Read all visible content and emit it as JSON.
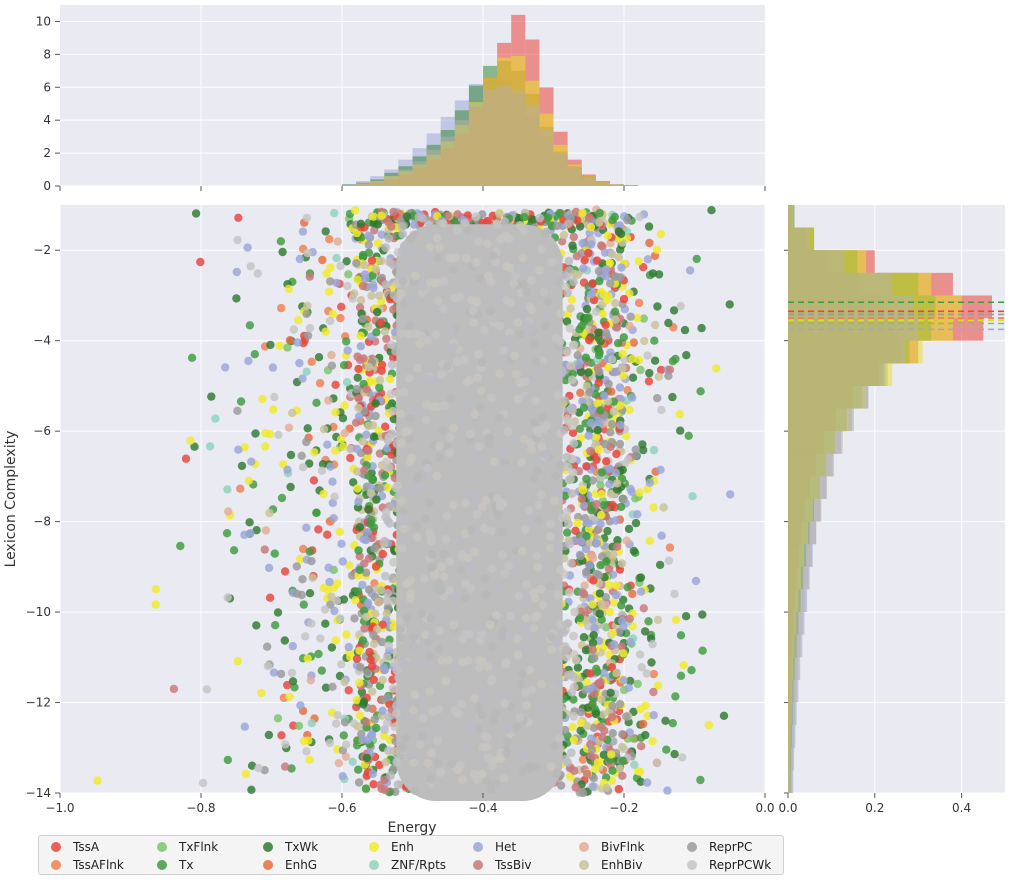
{
  "chart_data": [
    {
      "id": "top_histogram",
      "type": "histogram",
      "title": "",
      "xlabel": "",
      "ylabel": "",
      "xlim": [
        -1.0,
        0.0
      ],
      "ylim": [
        0,
        11
      ],
      "yticks": [
        0,
        2,
        4,
        6,
        8,
        10
      ],
      "ytick_labels": [
        "0",
        "2",
        "4",
        "6",
        "8",
        "10"
      ],
      "grid": true,
      "bin_edges": [
        -0.6,
        -0.58,
        -0.56,
        -0.54,
        -0.52,
        -0.5,
        -0.48,
        -0.46,
        -0.44,
        -0.42,
        -0.4,
        -0.38,
        -0.36,
        -0.34,
        -0.32,
        -0.3,
        -0.28,
        -0.26,
        -0.24,
        -0.22,
        -0.2,
        -0.18
      ],
      "series": [
        {
          "name": "Het",
          "color": "#9fa8da",
          "values": [
            0.1,
            0.3,
            0.6,
            1.0,
            1.6,
            2.3,
            3.2,
            4.2,
            5.2,
            6.2,
            6.6,
            6.4,
            5.6,
            4.3,
            3.0,
            1.9,
            1.1,
            0.6,
            0.3,
            0.1,
            0.05
          ]
        },
        {
          "name": "TxWk",
          "color": "#3a8a3a",
          "values": [
            0.1,
            0.2,
            0.4,
            0.8,
            1.2,
            1.8,
            2.5,
            3.4,
            4.6,
            6.1,
            7.3,
            7.6,
            7.0,
            5.6,
            3.6,
            2.1,
            1.2,
            0.6,
            0.3,
            0.1,
            0.05
          ]
        },
        {
          "name": "TssA",
          "color": "#e8453c",
          "values": [
            0.05,
            0.1,
            0.2,
            0.4,
            0.7,
            1.1,
            1.6,
            2.3,
            3.2,
            4.8,
            6.6,
            8.7,
            10.4,
            8.9,
            6.0,
            3.3,
            1.6,
            0.7,
            0.3,
            0.1,
            0.05
          ]
        },
        {
          "name": "Enh",
          "color": "#e8e02a",
          "values": [
            0.05,
            0.15,
            0.3,
            0.6,
            0.9,
            1.3,
            1.9,
            2.7,
            3.7,
            5.1,
            6.6,
            7.8,
            7.9,
            6.4,
            4.4,
            2.5,
            1.3,
            0.6,
            0.3,
            0.1,
            0.05
          ]
        },
        {
          "name": "ReprPCWk",
          "color": "#b8b0a0",
          "values": [
            0.05,
            0.15,
            0.3,
            0.6,
            1.0,
            1.5,
            2.2,
            3.0,
            4.0,
            5.0,
            5.9,
            6.1,
            5.8,
            4.9,
            3.4,
            2.0,
            1.1,
            0.5,
            0.2,
            0.1,
            0.05
          ]
        }
      ]
    },
    {
      "id": "main_scatter",
      "type": "scatter",
      "title": "",
      "xlabel": "Energy",
      "ylabel": "Lexicon Complexity",
      "xlim": [
        -1.0,
        0.0
      ],
      "ylim": [
        -14,
        -1.0
      ],
      "xticks": [
        -1.0,
        -0.8,
        -0.6,
        -0.4,
        -0.2,
        0.0
      ],
      "xtick_labels": [
        "−1.0",
        "−0.8",
        "−0.6",
        "−0.4",
        "−0.2",
        "0.0"
      ],
      "yticks": [
        -14,
        -12,
        -10,
        -8,
        -6,
        -4,
        -2
      ],
      "ytick_labels": [
        "−14",
        "−12",
        "−10",
        "−8",
        "−6",
        "−4",
        "−2"
      ],
      "grid": true,
      "core_region": {
        "x": [
          -0.54,
          -0.27
        ],
        "y": [
          -14,
          -1.25
        ],
        "note": "dense overlapping points, predominantly grey (ReprPCWk)"
      },
      "series": [
        {
          "name": "TssA",
          "color": "#e8453c",
          "x_center": -0.36,
          "x_spread": 0.12,
          "y_range": [
            -14,
            -1.1
          ]
        },
        {
          "name": "TssAFlnk",
          "color": "#f07f4f",
          "x_center": -0.37,
          "x_spread": 0.12,
          "y_range": [
            -14,
            -1.1
          ]
        },
        {
          "name": "TxFlnk",
          "color": "#7cc46a",
          "x_center": -0.38,
          "x_spread": 0.13,
          "y_range": [
            -14,
            -1.1
          ]
        },
        {
          "name": "Tx",
          "color": "#3f9b3f",
          "x_center": -0.39,
          "x_spread": 0.15,
          "y_range": [
            -14,
            -1.1
          ]
        },
        {
          "name": "TxWk",
          "color": "#2f7a2f",
          "x_center": -0.4,
          "x_spread": 0.17,
          "y_range": [
            -14,
            -1.1
          ]
        },
        {
          "name": "EnhG",
          "color": "#e66d3a",
          "x_center": -0.37,
          "x_spread": 0.12,
          "y_range": [
            -14,
            -1.1
          ]
        },
        {
          "name": "Enh",
          "color": "#f0ea2a",
          "x_center": -0.38,
          "x_spread": 0.14,
          "y_range": [
            -14,
            -1.1
          ]
        },
        {
          "name": "ZNF/Rpts",
          "color": "#8fd3bd",
          "x_center": -0.4,
          "x_spread": 0.14,
          "y_range": [
            -14,
            -1.1
          ]
        },
        {
          "name": "Het",
          "color": "#9aa6d8",
          "x_center": -0.42,
          "x_spread": 0.15,
          "y_range": [
            -14,
            -1.1
          ]
        },
        {
          "name": "TssBiv",
          "color": "#c9787a",
          "x_center": -0.39,
          "x_spread": 0.12,
          "y_range": [
            -14,
            -1.1
          ]
        },
        {
          "name": "BivFlnk",
          "color": "#e2ad96",
          "x_center": -0.39,
          "x_spread": 0.12,
          "y_range": [
            -14,
            -1.1
          ]
        },
        {
          "name": "EnhBiv",
          "color": "#c8c39a",
          "x_center": -0.39,
          "x_spread": 0.12,
          "y_range": [
            -14,
            -1.1
          ]
        },
        {
          "name": "ReprPC",
          "color": "#9a9a9a",
          "x_center": -0.41,
          "x_spread": 0.14,
          "y_range": [
            -14,
            -1.1
          ]
        },
        {
          "name": "ReprPCWk",
          "color": "#c4c4c4",
          "x_center": -0.41,
          "x_spread": 0.14,
          "y_range": [
            -14,
            -1.1
          ]
        }
      ]
    },
    {
      "id": "right_histogram",
      "type": "histogram",
      "orientation": "horizontal",
      "title": "",
      "xlabel": "",
      "ylabel": "",
      "xlim": [
        0.0,
        0.5
      ],
      "ylim": [
        -14,
        -1.0
      ],
      "xticks": [
        0.0,
        0.2,
        0.4
      ],
      "xtick_labels": [
        "0.0",
        "0.2",
        "0.4"
      ],
      "grid": true,
      "bin_edges": [
        -14.0,
        -13.5,
        -13.0,
        -12.5,
        -12.0,
        -11.5,
        -11.0,
        -10.5,
        -10.0,
        -9.5,
        -9.0,
        -8.5,
        -8.0,
        -7.5,
        -7.0,
        -6.5,
        -6.0,
        -5.5,
        -5.0,
        -4.5,
        -4.0,
        -3.5,
        -3.0,
        -2.5,
        -2.0,
        -1.5,
        -1.0
      ],
      "series": [
        {
          "name": "Het",
          "color": "#9fa8da",
          "values": [
            0.012,
            0.014,
            0.017,
            0.02,
            0.024,
            0.028,
            0.033,
            0.038,
            0.044,
            0.05,
            0.057,
            0.065,
            0.075,
            0.088,
            0.103,
            0.122,
            0.148,
            0.185,
            0.23,
            0.26,
            0.255,
            0.22,
            0.165,
            0.09,
            0.04,
            0.012
          ]
        },
        {
          "name": "TssA",
          "color": "#e8453c",
          "values": [
            0.002,
            0.003,
            0.004,
            0.005,
            0.006,
            0.008,
            0.01,
            0.013,
            0.016,
            0.02,
            0.025,
            0.031,
            0.039,
            0.05,
            0.064,
            0.083,
            0.11,
            0.15,
            0.21,
            0.3,
            0.45,
            0.47,
            0.38,
            0.2,
            0.06,
            0.01
          ]
        },
        {
          "name": "Tx",
          "color": "#3f9b3f",
          "values": [
            0.006,
            0.007,
            0.009,
            0.011,
            0.013,
            0.016,
            0.02,
            0.024,
            0.029,
            0.035,
            0.042,
            0.05,
            0.06,
            0.072,
            0.088,
            0.108,
            0.135,
            0.17,
            0.22,
            0.28,
            0.33,
            0.34,
            0.3,
            0.16,
            0.06,
            0.015
          ]
        },
        {
          "name": "Enh",
          "color": "#e8e02a",
          "values": [
            0.004,
            0.005,
            0.006,
            0.008,
            0.01,
            0.012,
            0.015,
            0.019,
            0.024,
            0.03,
            0.037,
            0.046,
            0.057,
            0.071,
            0.088,
            0.11,
            0.14,
            0.18,
            0.24,
            0.31,
            0.38,
            0.4,
            0.33,
            0.18,
            0.06,
            0.012
          ]
        },
        {
          "name": "ReprPCWk",
          "color": "#b8b0a0",
          "values": [
            0.01,
            0.012,
            0.014,
            0.017,
            0.02,
            0.024,
            0.029,
            0.034,
            0.04,
            0.047,
            0.055,
            0.065,
            0.077,
            0.09,
            0.106,
            0.126,
            0.152,
            0.185,
            0.225,
            0.27,
            0.3,
            0.29,
            0.24,
            0.13,
            0.05,
            0.012
          ]
        }
      ],
      "mean_lines": [
        {
          "name": "TssA",
          "color": "#e8453c",
          "y": -3.35
        },
        {
          "name": "TssAFlnk",
          "color": "#f07f4f",
          "y": -3.5
        },
        {
          "name": "Tx",
          "color": "#3f9b3f",
          "y": -3.15
        },
        {
          "name": "Enh",
          "color": "#e0d82a",
          "y": -3.55
        },
        {
          "name": "TxFlnk",
          "color": "#7cc46a",
          "y": -3.62
        },
        {
          "name": "Het",
          "color": "#9aa6d8",
          "y": -3.75
        },
        {
          "name": "ReprPC",
          "color": "#9a9a9a",
          "y": -3.42
        }
      ]
    }
  ],
  "legend": {
    "position": "bottom",
    "columns": 7,
    "items": [
      {
        "label": "TssA",
        "color": "#e8453c"
      },
      {
        "label": "TssAFlnk",
        "color": "#f07f4f"
      },
      {
        "label": "TxFlnk",
        "color": "#7cc46a"
      },
      {
        "label": "Tx",
        "color": "#3f9b3f"
      },
      {
        "label": "TxWk",
        "color": "#2f7a2f"
      },
      {
        "label": "EnhG",
        "color": "#e66d3a"
      },
      {
        "label": "Enh",
        "color": "#f0ea2a"
      },
      {
        "label": "ZNF/Rpts",
        "color": "#8fd3bd"
      },
      {
        "label": "Het",
        "color": "#9aa6d8"
      },
      {
        "label": "TssBiv",
        "color": "#c9787a"
      },
      {
        "label": "BivFlnk",
        "color": "#e2ad96"
      },
      {
        "label": "EnhBiv",
        "color": "#c8c39a"
      },
      {
        "label": "ReprPC",
        "color": "#9a9a9a"
      },
      {
        "label": "ReprPCWk",
        "color": "#c4c4c4"
      }
    ]
  }
}
